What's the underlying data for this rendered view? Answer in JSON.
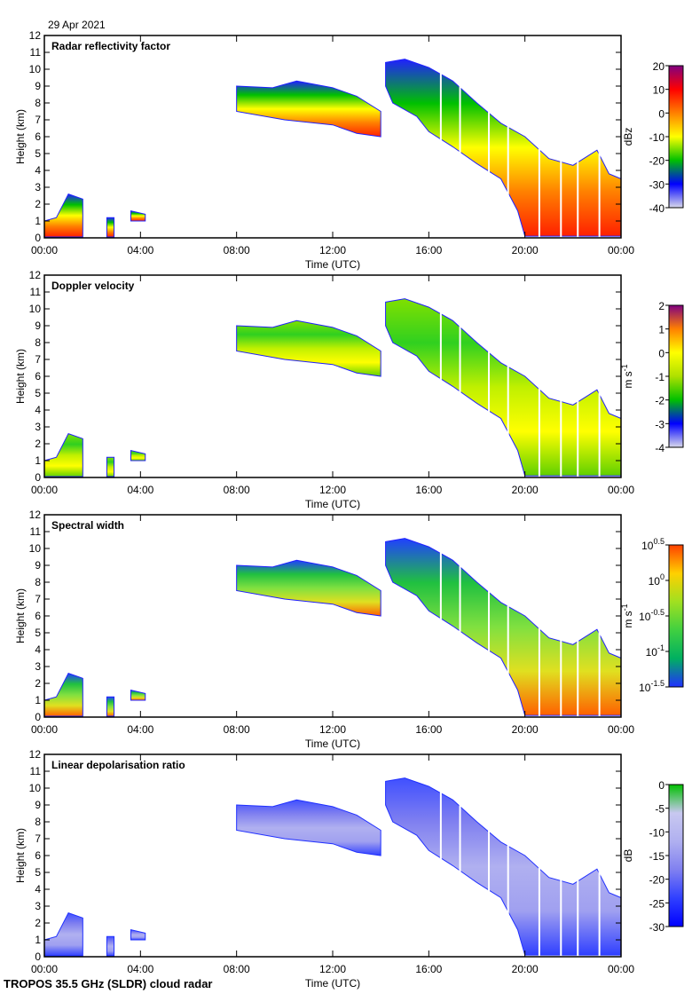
{
  "header": {
    "date": "29 Apr 2021"
  },
  "footer": {
    "label": "TROPOS 35.5 GHz (SLDR) cloud radar"
  },
  "chart_data": [
    {
      "type": "heatmap",
      "title": "Radar reflectivity factor",
      "xlabel": "Time (UTC)",
      "ylabel": "Height (km)",
      "xlim": [
        "00:00",
        "00:00"
      ],
      "ylim": [
        0,
        12
      ],
      "xticks": [
        "00:00",
        "04:00",
        "08:00",
        "12:00",
        "16:00",
        "20:00",
        "00:00"
      ],
      "yticks": [
        0,
        1,
        2,
        3,
        4,
        5,
        6,
        7,
        8,
        9,
        10,
        11,
        12
      ],
      "colorbar": {
        "label": "dBz",
        "ticks": [
          "20",
          "10",
          "0",
          "-10",
          "-20",
          "-30",
          "-40"
        ],
        "range": [
          -40,
          20
        ]
      },
      "palette": [
        "#d8d8ea",
        "#0000ff",
        "#00c000",
        "#ffff00",
        "#ff8000",
        "#ff0000",
        "#800080"
      ]
    },
    {
      "type": "heatmap",
      "title": "Doppler velocity",
      "xlabel": "Time (UTC)",
      "ylabel": "Height (km)",
      "xlim": [
        "00:00",
        "00:00"
      ],
      "ylim": [
        0,
        12
      ],
      "xticks": [
        "00:00",
        "04:00",
        "08:00",
        "12:00",
        "16:00",
        "20:00",
        "00:00"
      ],
      "yticks": [
        0,
        1,
        2,
        3,
        4,
        5,
        6,
        7,
        8,
        9,
        10,
        11,
        12
      ],
      "colorbar": {
        "label": "m s-1",
        "label_main": "m s",
        "label_sup": "-1",
        "ticks": [
          "2",
          "1",
          "0",
          "-1",
          "-2",
          "-3",
          "-4"
        ],
        "range": [
          -4,
          2
        ]
      },
      "palette": [
        "#d8d8ea",
        "#0000ff",
        "#00c000",
        "#aee000",
        "#ffff00",
        "#ff8000",
        "#800080"
      ]
    },
    {
      "type": "heatmap",
      "title": "Spectral width",
      "xlabel": "Time (UTC)",
      "ylabel": "Height (km)",
      "xlim": [
        "00:00",
        "00:00"
      ],
      "ylim": [
        0,
        12
      ],
      "xticks": [
        "00:00",
        "04:00",
        "08:00",
        "12:00",
        "16:00",
        "20:00",
        "00:00"
      ],
      "yticks": [
        0,
        1,
        2,
        3,
        4,
        5,
        6,
        7,
        8,
        9,
        10,
        11,
        12
      ],
      "colorbar": {
        "label": "m s-1",
        "label_main": "m s",
        "label_sup": "-1",
        "log_scale": true,
        "ticks": [
          {
            "base": "10",
            "exp": "0.5"
          },
          {
            "base": "10",
            "exp": "0"
          },
          {
            "base": "10",
            "exp": "-0.5"
          },
          {
            "base": "10",
            "exp": "-1"
          },
          {
            "base": "10",
            "exp": "-1.5"
          }
        ]
      },
      "palette": [
        "#2030ff",
        "#00b060",
        "#40d040",
        "#a0e020",
        "#ffd000",
        "#ff4000"
      ]
    },
    {
      "type": "heatmap",
      "title": "Linear depolarisation ratio",
      "xlabel": "Time (UTC)",
      "ylabel": "Height (km)",
      "xlim": [
        "00:00",
        "00:00"
      ],
      "ylim": [
        0,
        12
      ],
      "xticks": [
        "00:00",
        "04:00",
        "08:00",
        "12:00",
        "16:00",
        "20:00",
        "00:00"
      ],
      "yticks": [
        0,
        1,
        2,
        3,
        4,
        5,
        6,
        7,
        8,
        9,
        10,
        11,
        12
      ],
      "colorbar": {
        "label": "dB",
        "ticks": [
          "0",
          "-5",
          "-10",
          "-15",
          "-20",
          "-25",
          "-30"
        ],
        "range": [
          -30,
          0
        ]
      },
      "palette": [
        "#0000ff",
        "#3040ff",
        "#8080f0",
        "#b0b0f0",
        "#c8c8f0",
        "#00c000"
      ]
    }
  ],
  "cloud_regions": [
    {
      "outline": [
        [
          8,
          9.0
        ],
        [
          9.5,
          8.9
        ],
        [
          10.5,
          9.3
        ],
        [
          12,
          8.9
        ],
        [
          13,
          8.4
        ],
        [
          14,
          7.5
        ],
        [
          14,
          6.0
        ],
        [
          13,
          6.2
        ],
        [
          12,
          6.7
        ],
        [
          10,
          7.0
        ],
        [
          8,
          7.5
        ]
      ]
    },
    {
      "outline": [
        [
          14.2,
          10.4
        ],
        [
          15,
          10.6
        ],
        [
          16,
          10.1
        ],
        [
          17,
          9.3
        ],
        [
          18,
          8.0
        ],
        [
          19,
          6.8
        ],
        [
          20,
          6.0
        ],
        [
          21,
          4.7
        ],
        [
          22,
          4.3
        ],
        [
          23,
          5.2
        ],
        [
          23.5,
          3.8
        ],
        [
          24,
          3.5
        ],
        [
          24,
          0.1
        ],
        [
          20,
          0.1
        ],
        [
          19.7,
          1.6
        ],
        [
          19,
          3.5
        ],
        [
          18,
          4.4
        ],
        [
          17,
          5.4
        ],
        [
          16,
          6.3
        ],
        [
          15.5,
          7.2
        ],
        [
          14.5,
          8.0
        ],
        [
          14.2,
          9.0
        ]
      ]
    },
    {
      "outline": [
        [
          0,
          1.0
        ],
        [
          0.5,
          1.2
        ],
        [
          1.0,
          2.6
        ],
        [
          1.6,
          2.3
        ],
        [
          1.6,
          0.05
        ],
        [
          0,
          0.05
        ]
      ]
    },
    {
      "outline": [
        [
          2.6,
          1.2
        ],
        [
          2.9,
          1.2
        ],
        [
          2.9,
          0.05
        ],
        [
          2.6,
          0.05
        ]
      ]
    },
    {
      "outline": [
        [
          3.6,
          1.6
        ],
        [
          4.2,
          1.4
        ],
        [
          4.2,
          1.0
        ],
        [
          3.6,
          1.0
        ]
      ]
    }
  ],
  "data_gaps_hours": [
    16.5,
    17.3,
    18.5,
    19.3,
    20.6,
    21.5,
    22.2,
    23.1
  ]
}
